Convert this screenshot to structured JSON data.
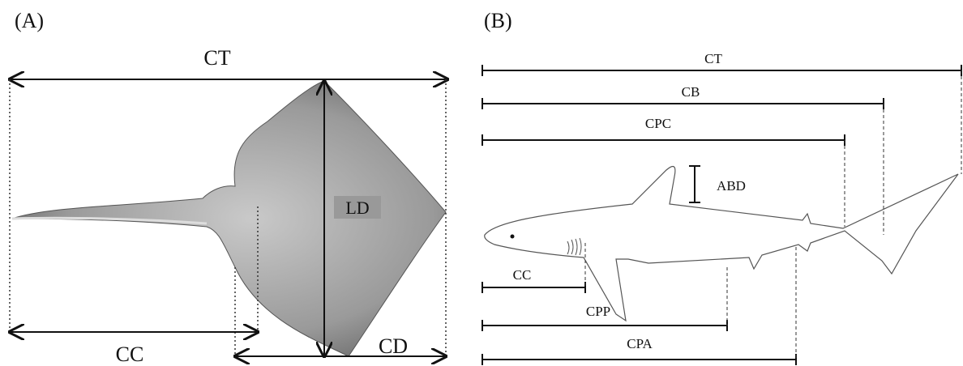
{
  "panels": [
    {
      "label": "(A)",
      "measurements": [
        "CT",
        "LD",
        "CC",
        "CD"
      ]
    },
    {
      "label": "(B)",
      "measurements": [
        "CT",
        "CB",
        "CPC",
        "ABD",
        "CC",
        "CPP",
        "CPA"
      ]
    }
  ]
}
